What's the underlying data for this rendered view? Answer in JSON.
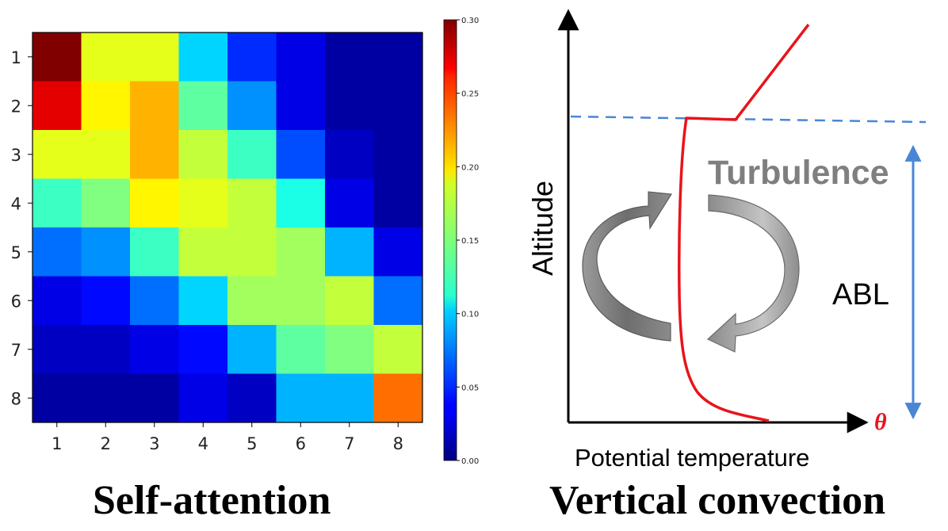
{
  "chart_data": {
    "type": "heatmap",
    "row_labels": [
      "1",
      "2",
      "3",
      "4",
      "5",
      "6",
      "7",
      "8"
    ],
    "col_labels": [
      "1",
      "2",
      "3",
      "4",
      "5",
      "6",
      "7",
      "8"
    ],
    "values": [
      [
        0.3,
        0.18,
        0.18,
        0.1,
        0.05,
        0.03,
        0.01,
        0.01
      ],
      [
        0.27,
        0.19,
        0.21,
        0.14,
        0.08,
        0.03,
        0.01,
        0.01
      ],
      [
        0.18,
        0.18,
        0.21,
        0.17,
        0.13,
        0.06,
        0.02,
        0.01
      ],
      [
        0.13,
        0.15,
        0.19,
        0.18,
        0.17,
        0.12,
        0.03,
        0.01
      ],
      [
        0.07,
        0.08,
        0.13,
        0.17,
        0.17,
        0.16,
        0.09,
        0.03
      ],
      [
        0.03,
        0.04,
        0.07,
        0.1,
        0.16,
        0.16,
        0.17,
        0.07
      ],
      [
        0.02,
        0.02,
        0.03,
        0.04,
        0.09,
        0.14,
        0.15,
        0.17
      ],
      [
        0.01,
        0.01,
        0.01,
        0.03,
        0.02,
        0.09,
        0.09,
        0.23
      ]
    ],
    "colorbar": {
      "min": 0.0,
      "max": 0.3,
      "ticks": [
        "0.00",
        "0.05",
        "0.10",
        "0.15",
        "0.20",
        "0.25",
        "0.30"
      ],
      "colormap": "jet"
    }
  },
  "captions": {
    "left": "Self-attention",
    "right": "Vertical convection"
  },
  "diagram": {
    "y_axis_label": "Altitude",
    "x_axis_label": "Potential temperature",
    "x_axis_symbol": "θ",
    "turbulence_label": "Turbulence",
    "abl_label": "ABL"
  },
  "colors": {
    "profile": "#e8141b",
    "boundary_dashed": "#4a86d6",
    "abl_arrow": "#4a86d6",
    "turbulence_text": "#7f7f7f",
    "theta_symbol": "#e8141b"
  }
}
